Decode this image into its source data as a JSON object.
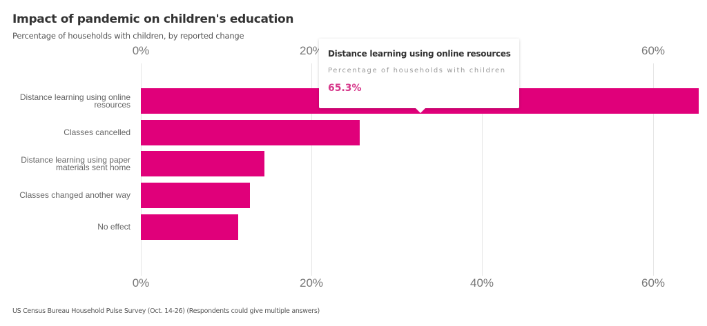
{
  "header": {
    "title": "Impact of pandemic on children's education",
    "subtitle": "Percentage of households with children, by reported change"
  },
  "axis": {
    "ticks": [
      "0%",
      "20%",
      "40%",
      "60%"
    ]
  },
  "tooltip": {
    "title": "Distance learning using online resources",
    "series_label": "Percentage of households with children",
    "value": "65.3%"
  },
  "footer": {
    "source": "US Census Bureau Household Pulse Survey (Oct. 14-26) (Respondents could give multiple answers)"
  },
  "colors": {
    "bar": "#e0007a",
    "tooltip_value": "#d6378a"
  },
  "chart_data": {
    "type": "bar",
    "orientation": "horizontal",
    "title": "Impact of pandemic on children's education",
    "subtitle": "Percentage of households with children, by reported change",
    "categories": [
      "Distance learning using online resources",
      "Classes cancelled",
      "Distance learning using paper materials sent home",
      "Classes changed another way",
      "No effect"
    ],
    "series": [
      {
        "name": "Percentage of households with children",
        "values": [
          65.3,
          25.6,
          14.5,
          12.8,
          11.4
        ]
      }
    ],
    "xlabel": "",
    "ylabel": "",
    "xlim": [
      0,
      65.3
    ],
    "xticks": [
      "0%",
      "20%",
      "40%",
      "60%"
    ],
    "grid": true,
    "legend": "none",
    "source": "US Census Bureau Household Pulse Survey (Oct. 14-26) (Respondents could give multiple answers)"
  }
}
